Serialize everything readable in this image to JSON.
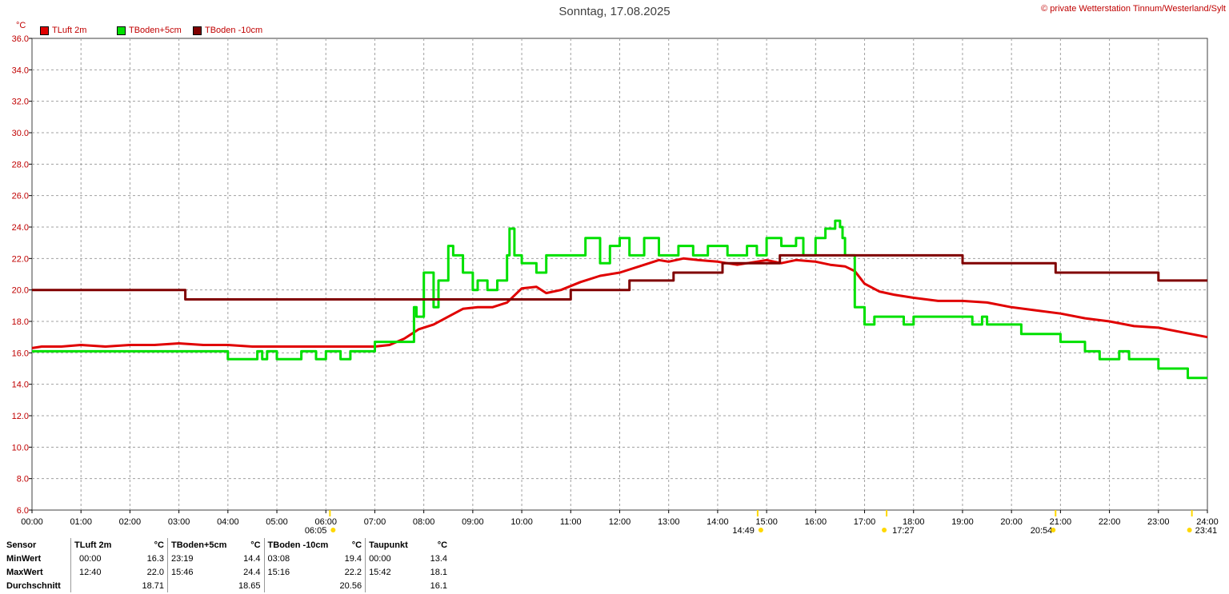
{
  "title": "Sonntag, 17.08.2025",
  "copyright": "© private Wetterstation Tinnum/Westerland/Sylt",
  "unit": "°C",
  "legend": [
    {
      "label": "TLuft 2m",
      "color": "#e00000"
    },
    {
      "label": "TBoden+5cm",
      "color": "#00e000"
    },
    {
      "label": "TBoden -10cm",
      "color": "#800000"
    }
  ],
  "chart_data": {
    "type": "line",
    "title": "Sonntag, 17.08.2025",
    "ylabel": "°C",
    "ylim": [
      6.0,
      36.0
    ],
    "xlim": [
      0,
      24
    ],
    "y_ticks": [
      "6.0",
      "8.0",
      "10.0",
      "12.0",
      "14.0",
      "16.0",
      "18.0",
      "20.0",
      "22.0",
      "24.0",
      "26.0",
      "28.0",
      "30.0",
      "32.0",
      "34.0",
      "36.0"
    ],
    "x_ticks": [
      "00:00",
      "01:00",
      "02:00",
      "03:00",
      "04:00",
      "05:00",
      "06:00",
      "07:00",
      "08:00",
      "09:00",
      "10:00",
      "11:00",
      "12:00",
      "13:00",
      "14:00",
      "15:00",
      "16:00",
      "17:00",
      "18:00",
      "19:00",
      "20:00",
      "21:00",
      "22:00",
      "23:00",
      "24:00"
    ],
    "grid": true,
    "legend_position": "top-left",
    "series": [
      {
        "name": "TLuft 2m",
        "color": "#e00000",
        "step": false,
        "x": [
          0,
          0.2,
          0.6,
          1,
          1.5,
          2,
          2.5,
          3,
          3.5,
          4,
          4.5,
          5,
          5.5,
          6,
          6.5,
          7,
          7.3,
          7.6,
          7.9,
          8.2,
          8.5,
          8.8,
          9.1,
          9.4,
          9.7,
          10,
          10.3,
          10.5,
          10.8,
          11.2,
          11.6,
          12,
          12.4,
          12.8,
          13,
          13.3,
          13.6,
          14,
          14.4,
          14.8,
          15,
          15.3,
          15.6,
          16,
          16.3,
          16.6,
          16.8,
          17,
          17.3,
          17.6,
          18,
          18.5,
          19,
          19.5,
          20,
          20.5,
          21,
          21.5,
          22,
          22.5,
          23,
          23.5,
          24
        ],
        "y": [
          16.3,
          16.4,
          16.4,
          16.5,
          16.4,
          16.5,
          16.5,
          16.6,
          16.5,
          16.5,
          16.4,
          16.4,
          16.4,
          16.4,
          16.4,
          16.4,
          16.5,
          16.9,
          17.5,
          17.8,
          18.3,
          18.8,
          18.9,
          18.9,
          19.2,
          20.1,
          20.2,
          19.8,
          20.0,
          20.5,
          20.9,
          21.1,
          21.5,
          21.9,
          21.8,
          22.0,
          21.9,
          21.8,
          21.6,
          21.8,
          21.9,
          21.7,
          21.9,
          21.8,
          21.6,
          21.5,
          21.2,
          20.4,
          19.9,
          19.7,
          19.5,
          19.3,
          19.3,
          19.2,
          18.9,
          18.7,
          18.5,
          18.2,
          18.0,
          17.7,
          17.6,
          17.3,
          17.0
        ]
      },
      {
        "name": "TBoden+5cm",
        "color": "#00e000",
        "step": true,
        "x": [
          0,
          4,
          4.6,
          4.7,
          4.8,
          5,
          5.5,
          5.8,
          6,
          6.3,
          6.5,
          7,
          7.5,
          7.8,
          7.85,
          8,
          8.2,
          8.3,
          8.5,
          8.6,
          8.8,
          9,
          9.1,
          9.3,
          9.5,
          9.7,
          9.75,
          9.85,
          10,
          10.3,
          10.5,
          11,
          11.3,
          11.6,
          11.8,
          12,
          12.2,
          12.5,
          12.8,
          13.2,
          13.5,
          13.8,
          14.2,
          14.6,
          14.8,
          15,
          15.3,
          15.6,
          15.75,
          16,
          16.2,
          16.4,
          16.5,
          16.55,
          16.6,
          16.8,
          17,
          17.2,
          17.5,
          17.8,
          18,
          18.5,
          19,
          19.2,
          19.4,
          19.5,
          20,
          20.2,
          20.7,
          21,
          21.5,
          21.8,
          22,
          22.2,
          22.4,
          22.6,
          23,
          23.3,
          23.6,
          24
        ],
        "y": [
          16.1,
          15.6,
          16.1,
          15.6,
          16.1,
          15.6,
          16.1,
          15.6,
          16.1,
          15.6,
          16.1,
          16.7,
          16.7,
          18.9,
          18.3,
          21.1,
          18.9,
          20.6,
          22.8,
          22.2,
          21.1,
          20.0,
          20.6,
          20.0,
          20.6,
          22.2,
          23.9,
          22.2,
          21.7,
          21.1,
          22.2,
          22.2,
          23.3,
          21.7,
          22.8,
          23.3,
          22.2,
          23.3,
          22.2,
          22.8,
          22.2,
          22.8,
          22.2,
          22.8,
          22.2,
          23.3,
          22.8,
          23.3,
          22.2,
          23.3,
          23.9,
          24.4,
          24.0,
          23.3,
          22.2,
          18.9,
          17.8,
          18.3,
          18.3,
          17.8,
          18.3,
          18.3,
          18.3,
          17.8,
          18.3,
          17.8,
          17.8,
          17.2,
          17.2,
          16.7,
          16.1,
          15.6,
          15.6,
          16.1,
          15.6,
          15.6,
          15.0,
          15.0,
          14.4,
          14.4
        ]
      },
      {
        "name": "TBoden -10cm",
        "color": "#800000",
        "step": true,
        "x": [
          0,
          3.13,
          11,
          12.2,
          13.1,
          14.1,
          15.27,
          19,
          20.9,
          23,
          24
        ],
        "y": [
          20.0,
          19.4,
          20.0,
          20.6,
          21.1,
          21.7,
          22.2,
          21.7,
          21.1,
          20.6,
          20.6
        ]
      }
    ],
    "sun_markers": [
      {
        "time": "14:49",
        "label": "14:49"
      },
      {
        "time": "06:05",
        "label": "06:05"
      },
      {
        "time": "17:27",
        "label": "17:27"
      },
      {
        "time": "20:54",
        "label": "20:54"
      },
      {
        "time": "23:41",
        "label": "23:41"
      }
    ]
  },
  "stats": {
    "header": [
      "Sensor",
      "TLuft 2m",
      "°C",
      "TBoden+5cm",
      "°C",
      "TBoden -10cm",
      "°C",
      "Taupunkt",
      "°C"
    ],
    "rows": [
      {
        "label": "MinWert",
        "cells": [
          "00:00",
          "16.3",
          "23:19",
          "14.4",
          "03:08",
          "19.4",
          "00:00",
          "13.4"
        ]
      },
      {
        "label": "MaxWert",
        "cells": [
          "12:40",
          "22.0",
          "15:46",
          "24.4",
          "15:16",
          "22.2",
          "15:42",
          "18.1"
        ]
      },
      {
        "label": "Durchschnitt",
        "cells": [
          "",
          "18.71",
          "",
          "18.65",
          "",
          "20.56",
          "",
          "16.1"
        ]
      }
    ]
  }
}
